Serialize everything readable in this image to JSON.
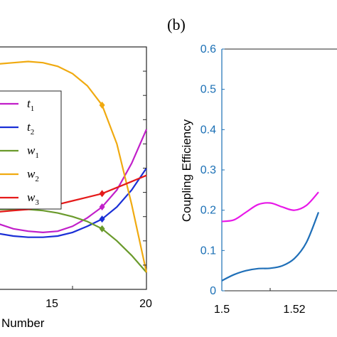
{
  "panel_label": "(b)",
  "chart_data": [
    {
      "type": "line",
      "xlabel": "Number",
      "xlim": [
        10,
        20
      ],
      "ylim": [
        0,
        1
      ],
      "x_ticks": [
        "15",
        "20"
      ],
      "legend": {
        "placement": "left-center"
      },
      "series": [
        {
          "name": "t1",
          "legend_main": "t",
          "legend_sub": "1",
          "color": "#c11fc9",
          "x": [
            10,
            11,
            12,
            13,
            14,
            15,
            16,
            17,
            18,
            19,
            20
          ],
          "y": [
            0.27,
            0.25,
            0.24,
            0.235,
            0.24,
            0.26,
            0.295,
            0.34,
            0.41,
            0.52,
            0.66
          ],
          "marker_x": 17
        },
        {
          "name": "t2",
          "legend_main": "t",
          "legend_sub": "2",
          "color": "#1a2fd6",
          "x": [
            10,
            11,
            12,
            13,
            14,
            15,
            16,
            17,
            18,
            19,
            20
          ],
          "y": [
            0.23,
            0.22,
            0.215,
            0.215,
            0.22,
            0.235,
            0.26,
            0.29,
            0.34,
            0.41,
            0.5
          ],
          "marker_x": 17
        },
        {
          "name": "w1",
          "legend_main": "w",
          "legend_sub": "1",
          "color": "#6a9a2c",
          "x": [
            10,
            11,
            12,
            13,
            14,
            15,
            16,
            17,
            18,
            19,
            20
          ],
          "y": [
            0.33,
            0.33,
            0.33,
            0.325,
            0.315,
            0.3,
            0.28,
            0.25,
            0.2,
            0.14,
            0.07
          ],
          "marker_x": 17
        },
        {
          "name": "w2",
          "legend_main": "w",
          "legend_sub": "2",
          "color": "#f0aa10",
          "x": [
            10,
            11,
            12,
            13,
            14,
            15,
            16,
            17,
            18,
            19,
            20
          ],
          "y": [
            0.93,
            0.935,
            0.94,
            0.935,
            0.92,
            0.89,
            0.84,
            0.76,
            0.6,
            0.35,
            0.07
          ],
          "marker_x": 17
        },
        {
          "name": "w3",
          "legend_main": "w",
          "legend_sub": "3",
          "color": "#e51a1a",
          "x": [
            10,
            11,
            12,
            13,
            14,
            15,
            16,
            17,
            18,
            19,
            20
          ],
          "y": [
            0.32,
            0.325,
            0.33,
            0.34,
            0.35,
            0.365,
            0.38,
            0.395,
            0.42,
            0.445,
            0.47
          ],
          "marker_x": 17
        }
      ]
    },
    {
      "type": "line",
      "ylabel": "Coupling Efficiency",
      "xlim": [
        1.5,
        1.56
      ],
      "ylim": [
        0,
        0.6
      ],
      "x_ticks": [
        "1.5",
        "1.52"
      ],
      "y_ticks": [
        "0",
        "0.1",
        "0.2",
        "0.3",
        "0.4",
        "0.5",
        "0.6"
      ],
      "series": [
        {
          "color": "#e818e8",
          "x": [
            1.5,
            1.505,
            1.51,
            1.515,
            1.52,
            1.525,
            1.53,
            1.535,
            1.54
          ],
          "y": [
            0.172,
            0.176,
            0.195,
            0.214,
            0.218,
            0.208,
            0.2,
            0.212,
            0.245
          ]
        },
        {
          "color": "#1f6fb8",
          "x": [
            1.5,
            1.505,
            1.51,
            1.515,
            1.52,
            1.525,
            1.53,
            1.535,
            1.54
          ],
          "y": [
            0.025,
            0.04,
            0.05,
            0.055,
            0.056,
            0.062,
            0.08,
            0.12,
            0.195
          ]
        }
      ]
    }
  ]
}
